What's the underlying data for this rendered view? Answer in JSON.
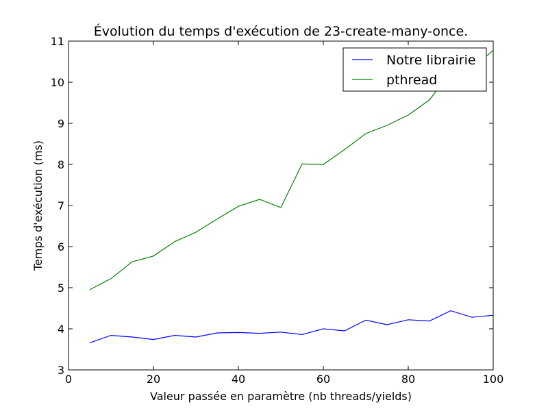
{
  "chart_data": {
    "type": "line",
    "title": "Évolution du temps d'exécution de 23-create-many-once.",
    "xlabel": "Valeur passée en paramètre (nb threads/yields)",
    "ylabel": "Temps d'exécution (ms)",
    "xlim": [
      0,
      100
    ],
    "ylim": [
      3,
      11
    ],
    "xticks": [
      0,
      20,
      40,
      60,
      80,
      100
    ],
    "yticks": [
      3,
      4,
      5,
      6,
      7,
      8,
      9,
      10,
      11
    ],
    "grid": false,
    "legend_position": "top-right",
    "x": [
      5,
      10,
      15,
      20,
      25,
      30,
      35,
      40,
      45,
      50,
      55,
      60,
      65,
      70,
      75,
      80,
      85,
      90,
      95,
      100
    ],
    "series": [
      {
        "name": "Notre librairie",
        "color": "#0000ff",
        "values": [
          3.66,
          3.84,
          3.8,
          3.74,
          3.84,
          3.8,
          3.9,
          3.91,
          3.89,
          3.92,
          3.86,
          4.0,
          3.95,
          4.21,
          4.1,
          4.22,
          4.19,
          4.44,
          4.28,
          4.33
        ]
      },
      {
        "name": "pthread",
        "color": "#008000",
        "values": [
          4.95,
          5.22,
          5.63,
          5.77,
          6.12,
          6.35,
          6.67,
          6.98,
          7.15,
          6.95,
          8.01,
          8.0,
          8.36,
          8.75,
          8.95,
          9.2,
          9.57,
          10.25,
          10.35,
          10.77
        ]
      }
    ]
  }
}
